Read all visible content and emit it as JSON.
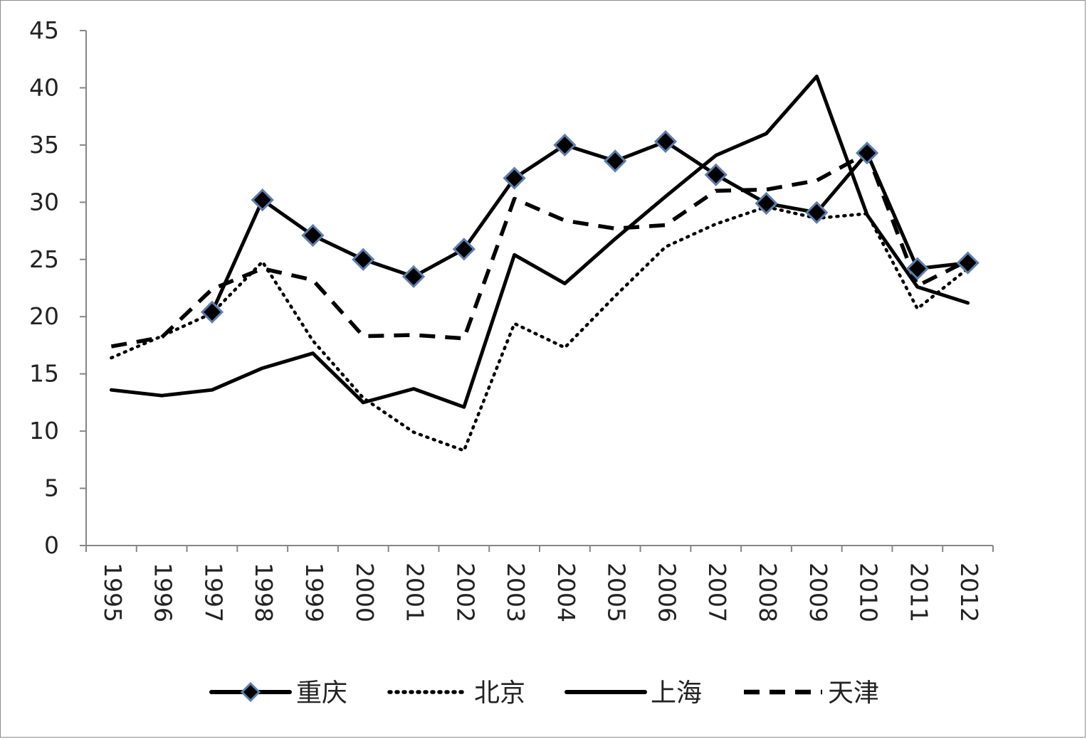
{
  "chart_data": {
    "type": "line",
    "title": "",
    "xlabel": "",
    "ylabel": "",
    "x": [
      "1995",
      "1996",
      "1997",
      "1998",
      "1999",
      "2000",
      "2001",
      "2002",
      "2003",
      "2004",
      "2005",
      "2006",
      "2007",
      "2008",
      "2009",
      "2010",
      "2011",
      "2012"
    ],
    "ylim": [
      0,
      45
    ],
    "yticks": [
      "0",
      "5",
      "10",
      "15",
      "20",
      "25",
      "30",
      "35",
      "40",
      "45"
    ],
    "grid": false,
    "legend_position": "bottom",
    "series": [
      {
        "name": "重庆",
        "style": "solid-diamond",
        "color": "#000000",
        "marker_fill": "#000000",
        "marker_edge": "#5b7fae",
        "values": [
          null,
          null,
          20.4,
          30.2,
          27.1,
          25.0,
          23.5,
          25.9,
          32.1,
          35.0,
          33.6,
          35.3,
          32.4,
          29.9,
          29.1,
          34.3,
          24.2,
          24.7
        ]
      },
      {
        "name": "北京",
        "style": "dotted",
        "color": "#000000",
        "values": [
          16.4,
          18.3,
          20.3,
          24.8,
          17.9,
          12.9,
          9.9,
          8.3,
          19.4,
          17.3,
          21.8,
          26.1,
          28.1,
          29.6,
          28.6,
          29.0,
          20.7,
          24.2
        ]
      },
      {
        "name": "上海",
        "style": "solid",
        "color": "#000000",
        "values": [
          13.6,
          13.1,
          13.6,
          15.5,
          16.8,
          12.5,
          13.7,
          12.1,
          25.4,
          22.9,
          26.8,
          30.5,
          34.1,
          36.0,
          41.0,
          28.9,
          22.6,
          21.2
        ]
      },
      {
        "name": "天津",
        "style": "dashed",
        "color": "#000000",
        "values": [
          17.4,
          18.2,
          22.4,
          24.2,
          23.2,
          18.3,
          18.4,
          18.1,
          30.3,
          28.4,
          27.7,
          28.0,
          31.0,
          31.1,
          31.9,
          34.3,
          22.7,
          24.9
        ]
      }
    ]
  }
}
